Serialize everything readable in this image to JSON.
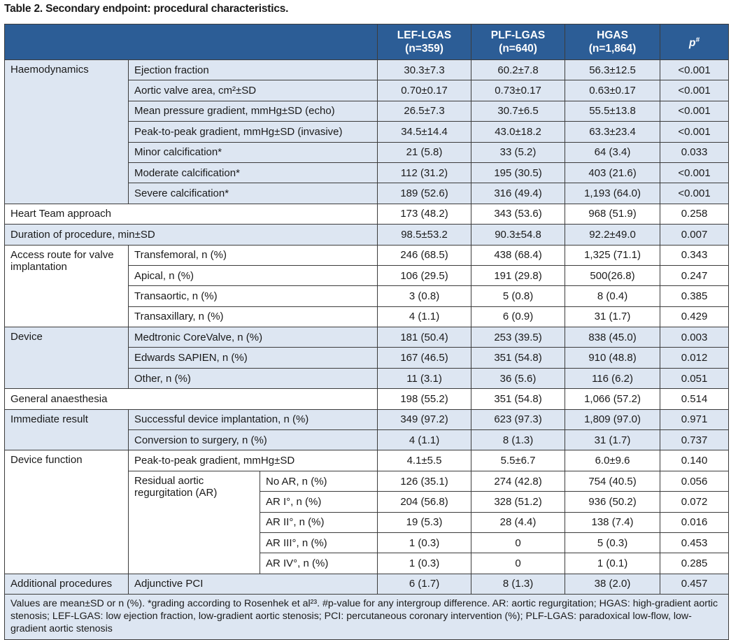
{
  "title": "Table 2. Secondary endpoint: procedural characteristics.",
  "header": {
    "col1": "LEF-LGAS",
    "col1_n": "(n=359)",
    "col2": "PLF-LGAS",
    "col2_n": "(n=640)",
    "col3": "HGAS",
    "col3_n": "(n=1,864)",
    "p": "p",
    "p_sup": "#"
  },
  "groups": {
    "haemo": "Haemodynamics",
    "heart_team": "Heart Team approach",
    "duration": "Duration of procedure, min±SD",
    "access": "Access route for valve implantation",
    "device": "Device",
    "anaesthesia": "General anaesthesia",
    "immediate": "Immediate result",
    "function": "Device function",
    "residual": "Residual aortic regurgitation (AR)",
    "additional": "Additional procedures"
  },
  "rows": {
    "ef": {
      "label": "Ejection fraction",
      "v1": "30.3±7.3",
      "v2": "60.2±7.8",
      "v3": "56.3±12.5",
      "p": "<0.001"
    },
    "ava": {
      "label": "Aortic valve area, cm²±SD",
      "v1": "0.70±0.17",
      "v2": "0.73±0.17",
      "v3": "0.63±0.17",
      "p": "<0.001"
    },
    "mpg": {
      "label": "Mean pressure gradient, mmHg±SD (echo)",
      "v1": "26.5±7.3",
      "v2": "30.7±6.5",
      "v3": "55.5±13.8",
      "p": "<0.001"
    },
    "ptp": {
      "label": "Peak-to-peak gradient, mmHg±SD (invasive)",
      "v1": "34.5±14.4",
      "v2": "43.0±18.2",
      "v3": "63.3±23.4",
      "p": "<0.001"
    },
    "minor": {
      "label": "Minor calcification*",
      "v1": "21 (5.8)",
      "v2": "33 (5.2)",
      "v3": "64 (3.4)",
      "p": "0.033"
    },
    "moderate": {
      "label": "Moderate calcification*",
      "v1": "112 (31.2)",
      "v2": "195 (30.5)",
      "v3": "403 (21.6)",
      "p": "<0.001"
    },
    "severe": {
      "label": "Severe calcification*",
      "v1": "189 (52.6)",
      "v2": "316 (49.4)",
      "v3": "1,193 (64.0)",
      "p": "<0.001"
    },
    "heart_team": {
      "v1": "173 (48.2)",
      "v2": "343 (53.6)",
      "v3": "968 (51.9)",
      "p": "0.258"
    },
    "duration": {
      "v1": "98.5±53.2",
      "v2": "90.3±54.8",
      "v3": "92.2±49.0",
      "p": "0.007"
    },
    "transfem": {
      "label": "Transfemoral, n (%)",
      "v1": "246 (68.5)",
      "v2": "438 (68.4)",
      "v3": "1,325 (71.1)",
      "p": "0.343"
    },
    "apical": {
      "label": "Apical, n (%)",
      "v1": "106 (29.5)",
      "v2": "191 (29.8)",
      "v3": "500(26.8)",
      "p": "0.247"
    },
    "transaortic": {
      "label": "Transaortic, n (%)",
      "v1": "3 (0.8)",
      "v2": "5 (0.8)",
      "v3": "8 (0.4)",
      "p": "0.385"
    },
    "transax": {
      "label": "Transaxillary, n (%)",
      "v1": "4 (1.1)",
      "v2": "6 (0.9)",
      "v3": "31 (1.7)",
      "p": "0.429"
    },
    "corevalve": {
      "label": "Medtronic CoreValve, n (%)",
      "v1": "181 (50.4)",
      "v2": "253 (39.5)",
      "v3": "838 (45.0)",
      "p": "0.003"
    },
    "sapien": {
      "label": "Edwards SAPIEN, n (%)",
      "v1": "167 (46.5)",
      "v2": "351 (54.8)",
      "v3": "910 (48.8)",
      "p": "0.012"
    },
    "other": {
      "label": "Other, n (%)",
      "v1": "11 (3.1)",
      "v2": "36 (5.6)",
      "v3": "116 (6.2)",
      "p": "0.051"
    },
    "anaesthesia": {
      "v1": "198 (55.2)",
      "v2": "351 (54.8)",
      "v3": "1,066 (57.2)",
      "p": "0.514"
    },
    "success": {
      "label": "Successful device implantation, n (%)",
      "v1": "349 (97.2)",
      "v2": "623 (97.3)",
      "v3": "1,809 (97.0)",
      "p": "0.971"
    },
    "conversion": {
      "label": "Conversion to surgery, n (%)",
      "v1": "4 (1.1)",
      "v2": "8 (1.3)",
      "v3": "31 (1.7)",
      "p": "0.737"
    },
    "fn_ptp": {
      "label": "Peak-to-peak gradient, mmHg±SD",
      "v1": "4.1±5.5",
      "v2": "5.5±6.7",
      "v3": "6.0±9.6",
      "p": "0.140"
    },
    "no_ar": {
      "label": "No AR, n (%)",
      "v1": "126 (35.1)",
      "v2": "274 (42.8)",
      "v3": "754 (40.5)",
      "p": "0.056"
    },
    "ar1": {
      "label": "AR I°, n (%)",
      "v1": "204 (56.8)",
      "v2": "328 (51.2)",
      "v3": "936 (50.2)",
      "p": "0.072"
    },
    "ar2": {
      "label": "AR II°, n (%)",
      "v1": "19 (5.3)",
      "v2": "28 (4.4)",
      "v3": "138 (7.4)",
      "p": "0.016"
    },
    "ar3": {
      "label": "AR III°, n (%)",
      "v1": "1 (0.3)",
      "v2": "0",
      "v3": "5 (0.3)",
      "p": "0.453"
    },
    "ar4": {
      "label": "AR IV°, n (%)",
      "v1": "1 (0.3)",
      "v2": "0",
      "v3": "1 (0.1)",
      "p": "0.285"
    },
    "pci": {
      "label": "Adjunctive PCI",
      "v1": "6 (1.7)",
      "v2": "8 (1.3)",
      "v3": "38 (2.0)",
      "p": "0.457"
    }
  },
  "footnote": "Values are mean±SD or n (%). *grading according to Rosenhek et al²³. #p-value for any intergroup difference. AR: aortic regurgitation; HGAS: high-gradient aortic stenosis; LEF-LGAS: low ejection fraction, low-gradient aortic stenosis; PCI: percutaneous coronary intervention (%); PLF-LGAS: paradoxical low-flow, low-gradient aortic stenosis"
}
